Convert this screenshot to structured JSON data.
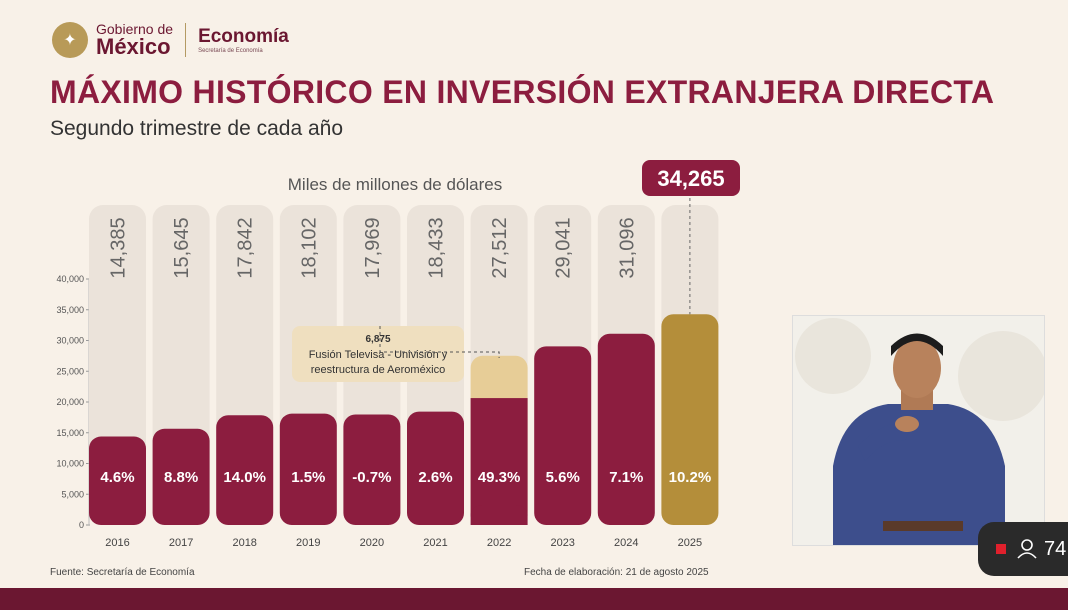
{
  "header": {
    "gov_line1": "Gobierno de",
    "gov_line2": "México",
    "ministry": "Economía",
    "ministry_small": "Secretaría de Economía"
  },
  "title": "MÁXIMO HISTÓRICO EN INVERSIÓN EXTRANJERA DIRECTA",
  "subtitle": "Segundo trimestre de cada año",
  "chart_data": {
    "type": "bar",
    "unit_label": "Miles de millones de dólares",
    "categories": [
      "2016",
      "2017",
      "2018",
      "2019",
      "2020",
      "2021",
      "2022",
      "2023",
      "2024",
      "2025"
    ],
    "values": [
      14385,
      15645,
      17842,
      18102,
      17969,
      18433,
      27512,
      29041,
      31096,
      34265
    ],
    "value_labels": [
      "14,385",
      "15,645",
      "17,842",
      "18,102",
      "17,969",
      "18,433",
      "27,512",
      "29,041",
      "31,096",
      "34,265"
    ],
    "growth_labels": [
      "4.6%",
      "8.8%",
      "14.0%",
      "1.5%",
      "-0.7%",
      "2.6%",
      "49.3%",
      "5.6%",
      "7.1%",
      "10.2%"
    ],
    "highlight_index": 9,
    "stack_2022": {
      "base": 20637,
      "extra": 6875
    },
    "annotation": {
      "value": "6,875",
      "text_line1": "Fusión Televisa - Univisión y",
      "text_line2": "reestructura de Aeroméxico"
    },
    "y_ticks": [
      "0",
      "5,000",
      "10,000",
      "15,000",
      "20,000",
      "25,000",
      "30,000",
      "35,000",
      "40,000"
    ],
    "ylim": [
      0,
      40000
    ],
    "colors": {
      "bar": "#8c1d3f",
      "highlight": "#b48e3a",
      "stack_extra": "#e7cd97",
      "track": "#ebe3da"
    }
  },
  "footer": {
    "source": "Fuente: Secretaría de Economía",
    "date": "Fecha de elaboración: 21 de agosto 2025"
  },
  "viewer_count": "74"
}
